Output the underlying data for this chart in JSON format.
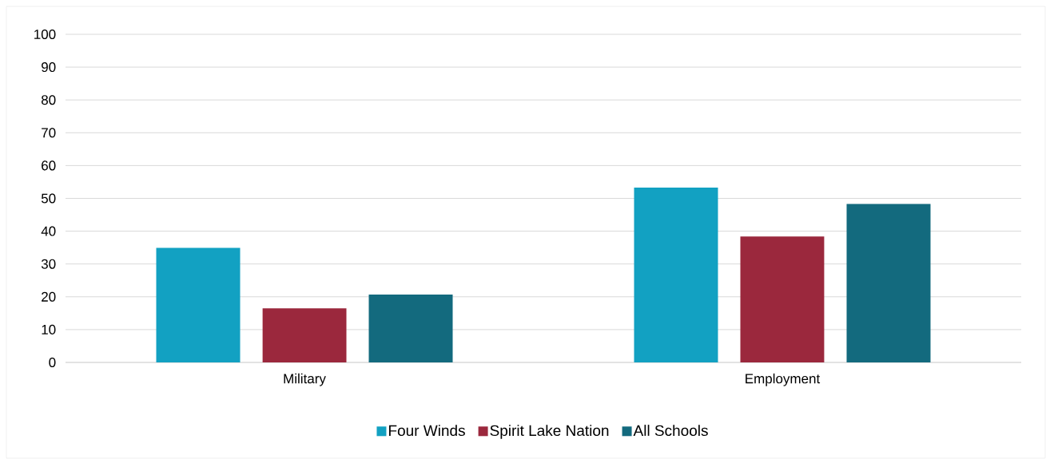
{
  "chart_data": {
    "type": "bar",
    "categories": [
      "Military",
      "Employment"
    ],
    "series": [
      {
        "name": "Four Winds",
        "color": "#12a1c2",
        "values": [
          34.9,
          53.3
        ]
      },
      {
        "name": "Spirit Lake Nation",
        "color": "#9b283d",
        "values": [
          16.5,
          38.4
        ]
      },
      {
        "name": "All Schools",
        "color": "#136a7e",
        "values": [
          20.7,
          48.3
        ]
      }
    ],
    "ylim": [
      0,
      100
    ],
    "yticks": [
      0,
      10,
      20,
      30,
      40,
      50,
      60,
      70,
      80,
      90,
      100
    ],
    "grid": "y",
    "legend": "bottom"
  }
}
